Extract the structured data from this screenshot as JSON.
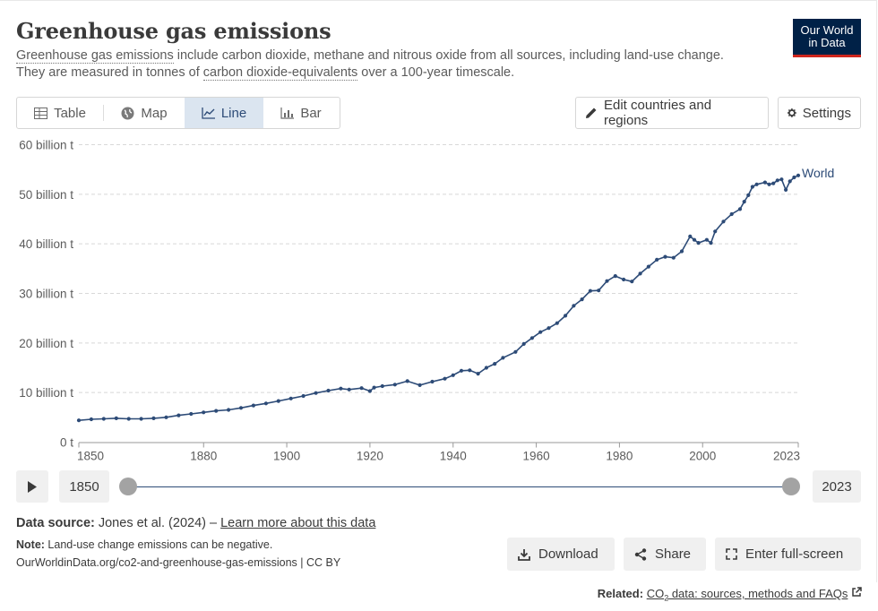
{
  "header": {
    "title": "Greenhouse gas emissions",
    "subtitle_link": "Greenhouse gas emissions",
    "subtitle_rest1": " include carbon dioxide, methane and nitrous oxide from all sources, including land-use change.",
    "subtitle_line2_a": "They are measured in tonnes of ",
    "subtitle_line2_link": "carbon dioxide-equivalents",
    "subtitle_line2_b": " over a 100-year timescale.",
    "logo_line1": "Our World",
    "logo_line2": "in Data"
  },
  "tabs": [
    {
      "label": "Table",
      "icon": "table-icon"
    },
    {
      "label": "Map",
      "icon": "globe-icon"
    },
    {
      "label": "Line",
      "icon": "line-chart-icon",
      "active": true
    },
    {
      "label": "Bar",
      "icon": "bar-chart-icon"
    }
  ],
  "toolbar": {
    "edit_label": "Edit countries and regions",
    "settings_label": "Settings"
  },
  "chart_data": {
    "type": "line",
    "ylim": [
      0,
      60
    ],
    "xlim": [
      1850,
      2023
    ],
    "y_ticks": [
      {
        "value": 0,
        "label": "0 t"
      },
      {
        "value": 10,
        "label": "10 billion t"
      },
      {
        "value": 20,
        "label": "20 billion t"
      },
      {
        "value": 30,
        "label": "30 billion t"
      },
      {
        "value": 40,
        "label": "40 billion t"
      },
      {
        "value": 50,
        "label": "50 billion t"
      },
      {
        "value": 60,
        "label": "60 billion t"
      }
    ],
    "x_ticks": [
      "1850",
      "1880",
      "1900",
      "1920",
      "1940",
      "1960",
      "1980",
      "2000",
      "2023"
    ],
    "grid": true,
    "accent_color": "#2d4b77",
    "series": [
      {
        "name": "World",
        "points": [
          [
            1850,
            4.4
          ],
          [
            1853,
            4.6
          ],
          [
            1856,
            4.7
          ],
          [
            1859,
            4.8
          ],
          [
            1862,
            4.7
          ],
          [
            1865,
            4.7
          ],
          [
            1868,
            4.8
          ],
          [
            1871,
            5.0
          ],
          [
            1874,
            5.4
          ],
          [
            1877,
            5.7
          ],
          [
            1880,
            6.0
          ],
          [
            1883,
            6.3
          ],
          [
            1886,
            6.5
          ],
          [
            1889,
            6.9
          ],
          [
            1892,
            7.4
          ],
          [
            1895,
            7.8
          ],
          [
            1898,
            8.3
          ],
          [
            1901,
            8.8
          ],
          [
            1904,
            9.3
          ],
          [
            1907,
            9.9
          ],
          [
            1910,
            10.4
          ],
          [
            1913,
            10.8
          ],
          [
            1915,
            10.6
          ],
          [
            1918,
            10.9
          ],
          [
            1920,
            10.3
          ],
          [
            1921,
            11.0
          ],
          [
            1923,
            11.3
          ],
          [
            1926,
            11.6
          ],
          [
            1929,
            12.3
          ],
          [
            1932,
            11.5
          ],
          [
            1935,
            12.2
          ],
          [
            1938,
            12.8
          ],
          [
            1940,
            13.5
          ],
          [
            1942,
            14.4
          ],
          [
            1944,
            14.5
          ],
          [
            1946,
            13.8
          ],
          [
            1948,
            15.0
          ],
          [
            1950,
            15.8
          ],
          [
            1952,
            17.0
          ],
          [
            1955,
            18.2
          ],
          [
            1957,
            19.8
          ],
          [
            1959,
            21.0
          ],
          [
            1961,
            22.2
          ],
          [
            1963,
            23.0
          ],
          [
            1965,
            24.0
          ],
          [
            1967,
            25.5
          ],
          [
            1969,
            27.5
          ],
          [
            1971,
            28.8
          ],
          [
            1973,
            30.5
          ],
          [
            1975,
            30.6
          ],
          [
            1977,
            32.5
          ],
          [
            1979,
            33.5
          ],
          [
            1981,
            32.8
          ],
          [
            1983,
            32.4
          ],
          [
            1985,
            34.0
          ],
          [
            1987,
            35.4
          ],
          [
            1989,
            36.8
          ],
          [
            1991,
            37.4
          ],
          [
            1993,
            37.2
          ],
          [
            1995,
            38.5
          ],
          [
            1997,
            41.5
          ],
          [
            1998,
            40.8
          ],
          [
            1999,
            40.2
          ],
          [
            2001,
            40.8
          ],
          [
            2002,
            40.2
          ],
          [
            2003,
            42.5
          ],
          [
            2005,
            44.5
          ],
          [
            2007,
            46.0
          ],
          [
            2009,
            47.0
          ],
          [
            2010,
            48.5
          ],
          [
            2011,
            49.8
          ],
          [
            2012,
            51.5
          ],
          [
            2013,
            52.0
          ],
          [
            2015,
            52.4
          ],
          [
            2016,
            52.0
          ],
          [
            2017,
            52.2
          ],
          [
            2018,
            52.8
          ],
          [
            2019,
            53.0
          ],
          [
            2020,
            50.9
          ],
          [
            2021,
            52.6
          ],
          [
            2022,
            53.4
          ],
          [
            2023,
            53.8
          ]
        ]
      }
    ]
  },
  "timeline": {
    "start_year": "1850",
    "end_year": "2023",
    "start_fraction": 0,
    "end_fraction": 1
  },
  "footer": {
    "source_label": "Data source:",
    "source_text": " Jones et al. (2024) – ",
    "learn_more": "Learn more about this data",
    "note_label": "Note:",
    "note_text": " Land-use change emissions can be negative.",
    "url": "OurWorldinData.org/co2-and-greenhouse-gas-emissions | CC BY",
    "download_label": "Download",
    "share_label": "Share",
    "fullscreen_label": "Enter full-screen",
    "related_label": "Related:",
    "related_link_a": "CO",
    "related_link_sub": "2",
    "related_link_b": " data: sources, methods and FAQs"
  }
}
